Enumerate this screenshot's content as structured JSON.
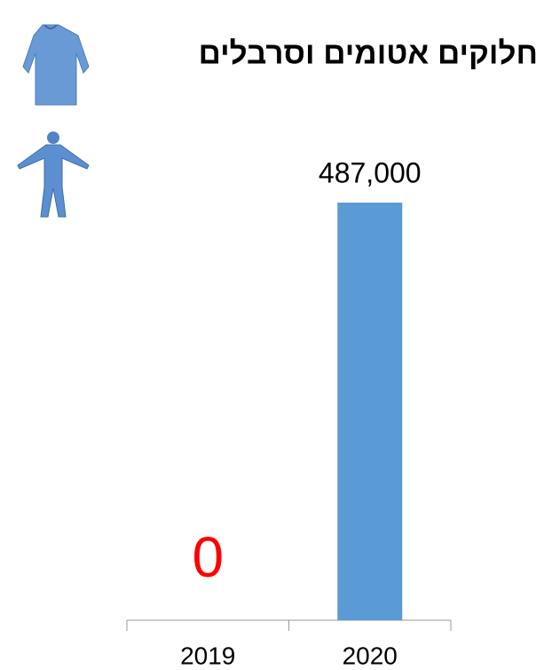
{
  "chart_data": {
    "type": "bar",
    "title": "חלוקים אטומים וסרבלים",
    "categories": [
      "2019",
      "2020"
    ],
    "values": [
      0,
      487000
    ],
    "value_labels": [
      "0",
      "487,000"
    ],
    "value_label_colors": [
      "#ff0000",
      "#000000"
    ],
    "color": "#5b9bd5"
  }
}
